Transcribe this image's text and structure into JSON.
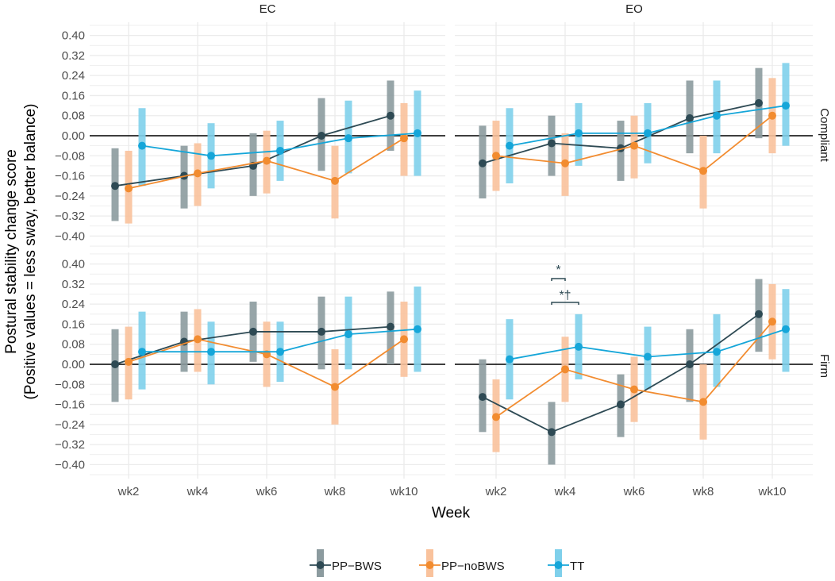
{
  "chart_data": {
    "type": "line",
    "xlabel": "Week",
    "ylabel_lines": [
      "Postural stability change score",
      "(Positive values = less sway, better balance)"
    ],
    "ylim": [
      -0.44,
      0.44
    ],
    "yticks": [
      "0.40",
      "0.32",
      "0.24",
      "0.16",
      "0.08",
      "0.00",
      "-0.08",
      "-0.16",
      "-0.24",
      "-0.32",
      "-0.40"
    ],
    "categories": [
      "wk2",
      "wk4",
      "wk6",
      "wk8",
      "wk10"
    ],
    "columns": [
      "EC",
      "EO"
    ],
    "rows": [
      "Compliant",
      "Firm"
    ],
    "legend_position": "bottom",
    "series_meta": [
      {
        "name": "PP−BWS",
        "color": "#2e4a54",
        "bar_color": "#8c9b9f"
      },
      {
        "name": "PP−noBWS",
        "color": "#f28c30",
        "bar_color": "#f9c29c"
      },
      {
        "name": "TT",
        "color": "#15a6d9",
        "bar_color": "#7fd0eb"
      }
    ],
    "panels": [
      {
        "column": "EC",
        "row": "Compliant",
        "series": [
          {
            "values": [
              -0.2,
              -0.16,
              -0.12,
              0.0,
              0.08
            ],
            "lower": [
              -0.34,
              -0.29,
              -0.24,
              -0.14,
              -0.06
            ],
            "upper": [
              -0.05,
              -0.04,
              0.01,
              0.15,
              0.22
            ]
          },
          {
            "values": [
              -0.21,
              -0.15,
              -0.1,
              -0.18,
              -0.01
            ],
            "lower": [
              -0.35,
              -0.28,
              -0.23,
              -0.33,
              -0.16
            ],
            "upper": [
              -0.06,
              -0.03,
              0.02,
              -0.04,
              0.13
            ]
          },
          {
            "values": [
              -0.04,
              -0.08,
              -0.06,
              -0.01,
              0.01
            ],
            "lower": [
              -0.2,
              -0.21,
              -0.18,
              -0.15,
              -0.16
            ],
            "upper": [
              0.11,
              0.05,
              0.06,
              0.14,
              0.18
            ]
          }
        ]
      },
      {
        "column": "EO",
        "row": "Compliant",
        "series": [
          {
            "values": [
              -0.11,
              -0.03,
              -0.05,
              0.07,
              0.13
            ],
            "lower": [
              -0.25,
              -0.16,
              -0.18,
              -0.07,
              -0.01
            ],
            "upper": [
              0.04,
              0.08,
              0.06,
              0.22,
              0.27
            ]
          },
          {
            "values": [
              -0.08,
              -0.11,
              -0.04,
              -0.14,
              0.08
            ],
            "lower": [
              -0.22,
              -0.24,
              -0.17,
              -0.29,
              -0.07
            ],
            "upper": [
              0.06,
              0.01,
              0.08,
              0.0,
              0.23
            ]
          },
          {
            "values": [
              -0.04,
              0.01,
              0.01,
              0.08,
              0.12
            ],
            "lower": [
              -0.19,
              -0.12,
              -0.11,
              -0.07,
              -0.04
            ],
            "upper": [
              0.11,
              0.13,
              0.13,
              0.22,
              0.29
            ]
          }
        ]
      },
      {
        "column": "EC",
        "row": "Firm",
        "series": [
          {
            "values": [
              0.0,
              0.09,
              0.13,
              0.13,
              0.15
            ],
            "lower": [
              -0.15,
              -0.03,
              0.01,
              -0.02,
              0.0
            ],
            "upper": [
              0.14,
              0.21,
              0.25,
              0.27,
              0.29
            ]
          },
          {
            "values": [
              0.01,
              0.1,
              0.04,
              -0.09,
              0.1
            ],
            "lower": [
              -0.14,
              -0.03,
              -0.09,
              -0.24,
              -0.05
            ],
            "upper": [
              0.15,
              0.22,
              0.17,
              0.06,
              0.25
            ]
          },
          {
            "values": [
              0.05,
              0.05,
              0.05,
              0.12,
              0.14
            ],
            "lower": [
              -0.1,
              -0.08,
              -0.07,
              -0.02,
              -0.03
            ],
            "upper": [
              0.21,
              0.17,
              0.17,
              0.27,
              0.31
            ]
          }
        ]
      },
      {
        "column": "EO",
        "row": "Firm",
        "series": [
          {
            "values": [
              -0.13,
              -0.27,
              -0.16,
              0.0,
              0.2
            ],
            "lower": [
              -0.27,
              -0.4,
              -0.29,
              -0.15,
              0.05
            ],
            "upper": [
              0.02,
              -0.15,
              -0.04,
              0.14,
              0.34
            ]
          },
          {
            "values": [
              -0.21,
              -0.02,
              -0.1,
              -0.15,
              0.17
            ],
            "lower": [
              -0.35,
              -0.15,
              -0.23,
              -0.3,
              0.02
            ],
            "upper": [
              -0.06,
              0.11,
              0.03,
              0.0,
              0.32
            ]
          },
          {
            "values": [
              0.02,
              0.07,
              0.03,
              0.05,
              0.14
            ],
            "lower": [
              -0.14,
              -0.06,
              -0.1,
              -0.09,
              -0.03
            ],
            "upper": [
              0.18,
              0.2,
              0.15,
              0.2,
              0.3
            ]
          }
        ]
      }
    ],
    "annotations": [
      {
        "panel": "EO-Firm",
        "category": "wk4",
        "between": [
          "PP−BWS",
          "PP−noBWS"
        ],
        "label": "*"
      },
      {
        "panel": "EO-Firm",
        "category": "wk4",
        "between": [
          "PP−BWS",
          "TT"
        ],
        "label": "*†"
      }
    ]
  }
}
